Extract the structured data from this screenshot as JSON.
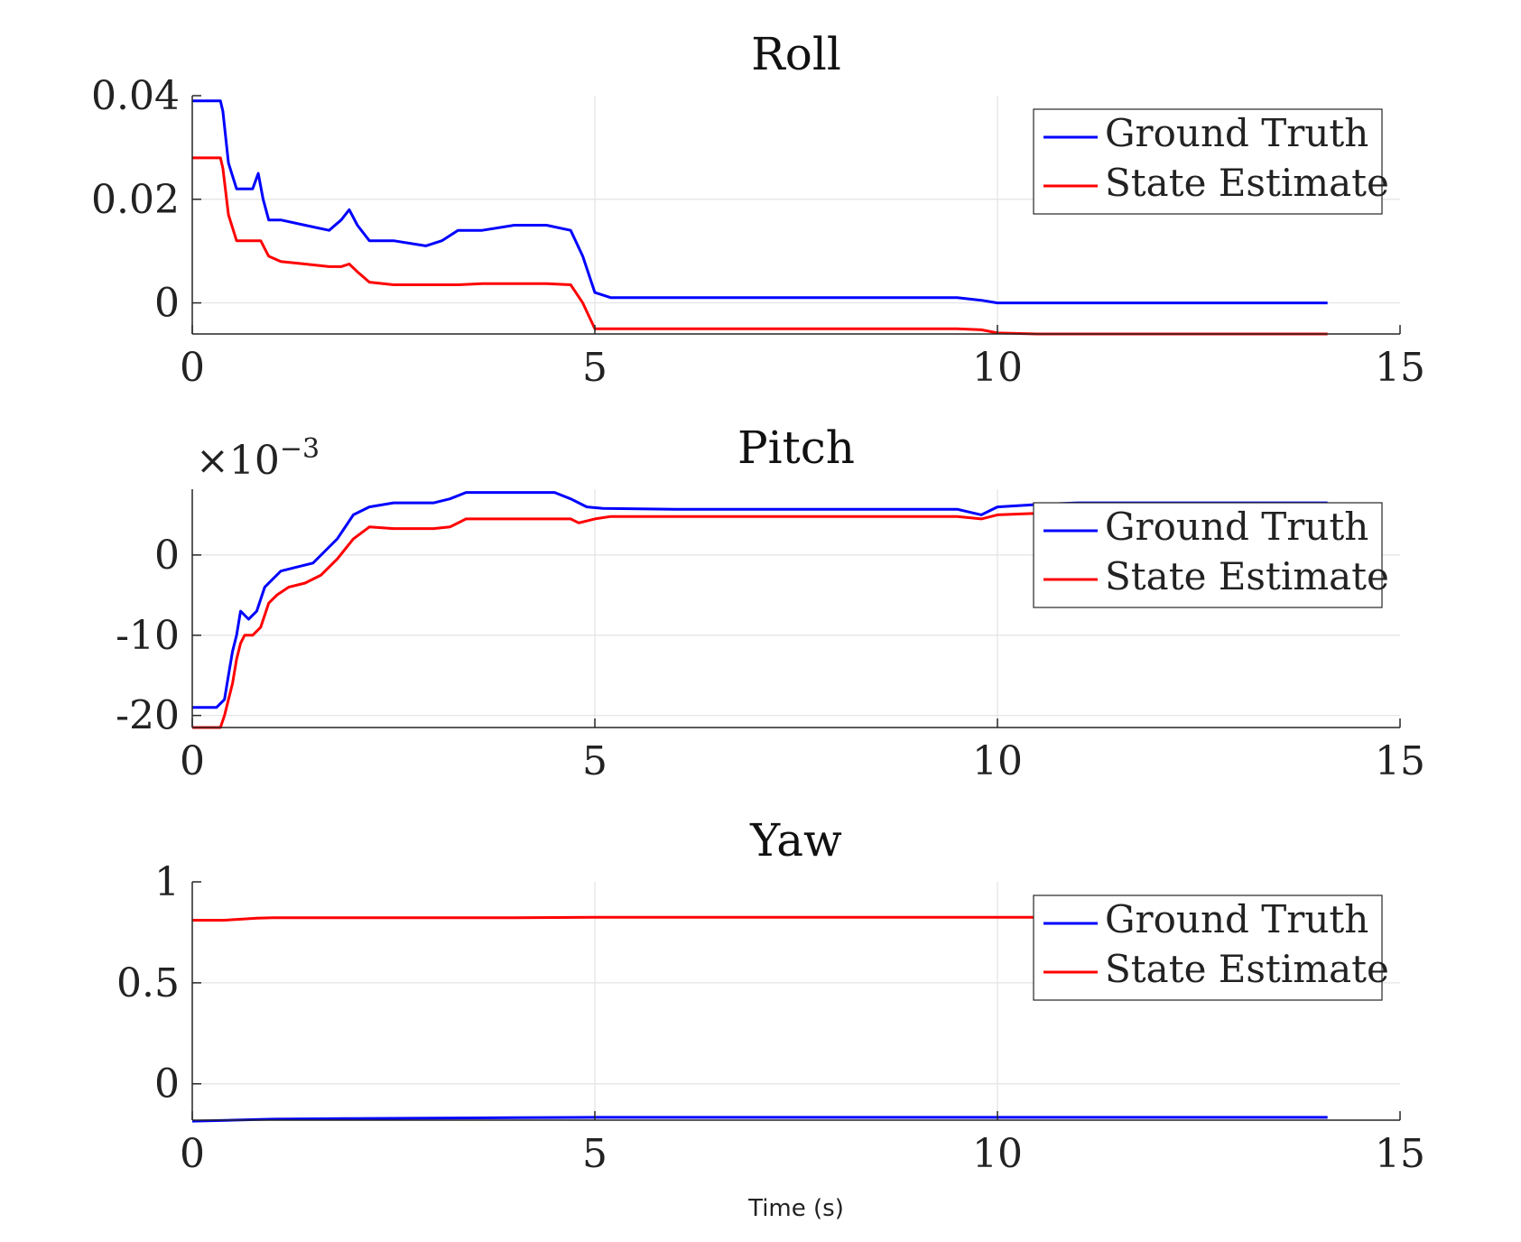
{
  "figure": {
    "xlabel": "Time (s)"
  },
  "colors": {
    "ground_truth": "#0000ff",
    "state_estimate": "#ff0000",
    "grid": "#e3e3e3",
    "axis": "#262626"
  },
  "chart_data": [
    {
      "type": "line",
      "title": "Roll",
      "xlim": [
        0,
        15
      ],
      "ylim": [
        -0.006,
        0.04
      ],
      "xticks": [
        0,
        5,
        10,
        15
      ],
      "yticks": [
        0,
        0.02,
        0.04
      ],
      "ytick_labels": [
        "0",
        "0.02",
        "0.04"
      ],
      "exponent_label": "",
      "grid": true,
      "legend": "top-right",
      "series": [
        {
          "name": "Ground Truth",
          "color": "#0000ff",
          "x": [
            0,
            0.35,
            0.38,
            0.45,
            0.55,
            0.65,
            0.75,
            0.82,
            0.88,
            0.95,
            1.1,
            1.4,
            1.7,
            1.85,
            1.95,
            2.05,
            2.2,
            2.5,
            2.9,
            3.1,
            3.3,
            3.6,
            4.0,
            4.4,
            4.7,
            4.85,
            5.0,
            5.2,
            6,
            7,
            8,
            9,
            9.5,
            9.8,
            10.0,
            10.5,
            11,
            12,
            13,
            14.1
          ],
          "y": [
            0.039,
            0.039,
            0.037,
            0.027,
            0.022,
            0.022,
            0.022,
            0.025,
            0.02,
            0.016,
            0.016,
            0.015,
            0.014,
            0.016,
            0.018,
            0.015,
            0.012,
            0.012,
            0.011,
            0.012,
            0.014,
            0.014,
            0.015,
            0.015,
            0.014,
            0.009,
            0.002,
            0.001,
            0.001,
            0.001,
            0.001,
            0.001,
            0.001,
            0.0005,
            0.0,
            0.0,
            0.0,
            0.0,
            0.0,
            0.0
          ]
        },
        {
          "name": "State Estimate",
          "color": "#ff0000",
          "x": [
            0,
            0.35,
            0.38,
            0.45,
            0.55,
            0.65,
            0.75,
            0.85,
            0.95,
            1.1,
            1.4,
            1.7,
            1.85,
            1.95,
            2.05,
            2.2,
            2.5,
            3.0,
            3.3,
            3.6,
            4.0,
            4.4,
            4.7,
            4.85,
            5.0,
            5.5,
            6,
            7,
            8,
            9,
            9.5,
            9.8,
            10.0,
            10.5,
            11,
            12,
            13,
            14.1
          ],
          "y": [
            0.028,
            0.028,
            0.026,
            0.017,
            0.012,
            0.012,
            0.012,
            0.012,
            0.009,
            0.008,
            0.0075,
            0.007,
            0.007,
            0.0075,
            0.006,
            0.004,
            0.0035,
            0.0035,
            0.0035,
            0.0037,
            0.0037,
            0.0037,
            0.0035,
            0.0,
            -0.005,
            -0.005,
            -0.005,
            -0.005,
            -0.005,
            -0.005,
            -0.005,
            -0.0052,
            -0.0058,
            -0.006,
            -0.006,
            -0.006,
            -0.006,
            -0.006
          ]
        }
      ]
    },
    {
      "type": "line",
      "title": "Pitch",
      "xlim": [
        0,
        15
      ],
      "ylim": [
        -0.0215,
        0.0082
      ],
      "xticks": [
        0,
        5,
        10,
        15
      ],
      "yticks": [
        -0.02,
        -0.01,
        0
      ],
      "ytick_labels": [
        "-20",
        "-10",
        "0"
      ],
      "exponent_label": "×10",
      "exponent_power": "−3",
      "grid": true,
      "legend": "top-right",
      "series": [
        {
          "name": "Ground Truth",
          "color": "#0000ff",
          "x": [
            0,
            0.3,
            0.4,
            0.45,
            0.5,
            0.55,
            0.6,
            0.7,
            0.8,
            0.9,
            1.0,
            1.1,
            1.3,
            1.5,
            1.7,
            1.8,
            2.0,
            2.2,
            2.5,
            3.0,
            3.2,
            3.4,
            4.0,
            4.5,
            4.7,
            4.9,
            5.1,
            6,
            7,
            8,
            9,
            9.5,
            9.8,
            10.0,
            10.5,
            11,
            12,
            13,
            14.1
          ],
          "y": [
            -0.019,
            -0.019,
            -0.018,
            -0.015,
            -0.012,
            -0.01,
            -0.007,
            -0.008,
            -0.007,
            -0.004,
            -0.003,
            -0.002,
            -0.0015,
            -0.001,
            0.001,
            0.002,
            0.005,
            0.006,
            0.0065,
            0.0065,
            0.007,
            0.0078,
            0.0078,
            0.0078,
            0.007,
            0.006,
            0.0058,
            0.0057,
            0.0057,
            0.0057,
            0.0057,
            0.0057,
            0.005,
            0.006,
            0.0063,
            0.0065,
            0.0065,
            0.0065,
            0.0065
          ]
        },
        {
          "name": "State Estimate",
          "color": "#ff0000",
          "x": [
            0,
            0.35,
            0.4,
            0.5,
            0.55,
            0.6,
            0.65,
            0.75,
            0.85,
            0.95,
            1.05,
            1.2,
            1.4,
            1.6,
            1.8,
            2.0,
            2.2,
            2.5,
            3.0,
            3.2,
            3.4,
            4.0,
            4.5,
            4.7,
            4.8,
            5.0,
            5.2,
            6,
            7,
            8,
            9,
            9.5,
            9.8,
            10.0,
            10.5,
            11,
            12,
            13,
            14.1
          ],
          "y": [
            -0.0215,
            -0.0215,
            -0.02,
            -0.016,
            -0.013,
            -0.011,
            -0.01,
            -0.01,
            -0.009,
            -0.006,
            -0.005,
            -0.004,
            -0.0035,
            -0.0025,
            -0.0005,
            0.002,
            0.0035,
            0.0033,
            0.0033,
            0.0035,
            0.0045,
            0.0045,
            0.0045,
            0.0045,
            0.004,
            0.0045,
            0.0048,
            0.0048,
            0.0048,
            0.0048,
            0.0048,
            0.0048,
            0.0045,
            0.005,
            0.0052,
            0.0052,
            0.0052,
            0.0052,
            0.0052
          ]
        }
      ]
    },
    {
      "type": "line",
      "title": "Yaw",
      "xlim": [
        0,
        15
      ],
      "ylim": [
        -0.18,
        1.0
      ],
      "xticks": [
        0,
        5,
        10,
        15
      ],
      "yticks": [
        0,
        0.5,
        1
      ],
      "ytick_labels": [
        "0",
        "0.5",
        "1"
      ],
      "exponent_label": "",
      "grid": true,
      "legend": "top-right",
      "series": [
        {
          "name": "Ground Truth",
          "color": "#0000ff",
          "x": [
            0,
            0.5,
            1,
            2,
            3,
            4,
            5,
            6,
            7,
            8,
            9,
            10,
            11,
            12,
            13,
            14.1
          ],
          "y": [
            -0.185,
            -0.18,
            -0.175,
            -0.172,
            -0.17,
            -0.168,
            -0.166,
            -0.166,
            -0.166,
            -0.166,
            -0.166,
            -0.166,
            -0.166,
            -0.166,
            -0.166,
            -0.166
          ]
        },
        {
          "name": "State Estimate",
          "color": "#ff0000",
          "x": [
            0,
            0.4,
            0.6,
            0.8,
            1,
            2,
            3,
            4,
            5,
            6,
            7,
            8,
            9,
            10,
            10.5,
            11,
            12,
            13,
            14.1
          ],
          "y": [
            0.81,
            0.81,
            0.815,
            0.82,
            0.822,
            0.822,
            0.822,
            0.822,
            0.825,
            0.825,
            0.825,
            0.825,
            0.825,
            0.825,
            0.825,
            0.825,
            0.825,
            0.825,
            0.825
          ]
        }
      ]
    }
  ]
}
